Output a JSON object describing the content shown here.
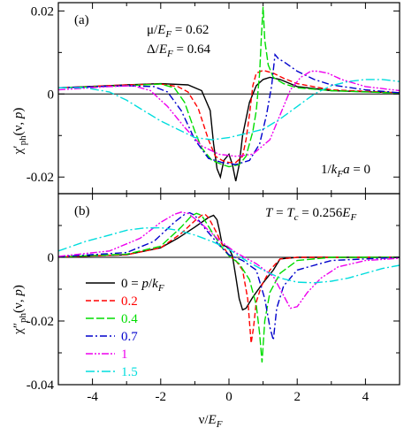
{
  "chart_data": [
    {
      "panel_label": "(a)",
      "type": "line",
      "ylabel": "χ′ph(ν, p)",
      "xlim": [
        -5,
        5
      ],
      "ylim": [
        -0.024,
        0.022
      ],
      "yticks": [
        {
          "value": 0.02,
          "label": "0.02"
        },
        {
          "value": 0,
          "label": "0"
        },
        {
          "value": -0.02,
          "label": "-0.02"
        }
      ],
      "annotations": [
        "μ/EF = 0.62",
        "Δ/EF = 0.64",
        "1/kFa = 0"
      ],
      "series": [
        {
          "name": "0",
          "color": "#000000",
          "dash": "solid",
          "x": [
            -5,
            -3,
            -2,
            -1.2,
            -0.8,
            -0.55,
            -0.45,
            -0.35,
            -0.25,
            -0.15,
            0,
            0.1,
            0.2,
            0.3,
            0.4,
            0.6,
            0.8,
            1.0,
            1.2,
            1.5,
            2,
            3,
            5
          ],
          "y": [
            0.0015,
            0.0022,
            0.0025,
            0.0022,
            0.0008,
            -0.004,
            -0.012,
            -0.018,
            -0.02,
            -0.016,
            -0.0145,
            -0.017,
            -0.021,
            -0.017,
            -0.01,
            -0.002,
            0.002,
            0.0035,
            0.004,
            0.0035,
            0.0018,
            0.0008,
            0.0003
          ]
        },
        {
          "name": "0.2",
          "color": "#ff0000",
          "dash": "6,3",
          "x": [
            -5,
            -3,
            -2,
            -1.5,
            -1.2,
            -0.9,
            -0.6,
            -0.4,
            -0.2,
            0,
            0.2,
            0.4,
            0.5,
            0.6,
            0.7,
            0.8,
            1.0,
            1.3,
            1.6,
            2,
            3,
            5
          ],
          "y": [
            0.0015,
            0.0022,
            0.0024,
            0.0018,
            0.0005,
            -0.0035,
            -0.011,
            -0.015,
            -0.016,
            -0.0165,
            -0.0165,
            -0.015,
            -0.011,
            -0.005,
            0.002,
            0.005,
            0.0057,
            0.005,
            0.0038,
            0.0025,
            0.001,
            0.0003
          ]
        },
        {
          "name": "0.4",
          "color": "#00dd00",
          "dash": "9,3",
          "x": [
            -5,
            -3,
            -2,
            -1.6,
            -1.3,
            -1.0,
            -0.8,
            -0.5,
            -0.2,
            0,
            0.3,
            0.5,
            0.7,
            0.8,
            0.9,
            0.95,
            1.0,
            1.05,
            1.15,
            1.3,
            1.6,
            2,
            3,
            5
          ],
          "y": [
            0.0015,
            0.002,
            0.0024,
            0.0015,
            -0.002,
            -0.009,
            -0.013,
            -0.016,
            -0.017,
            -0.0175,
            -0.017,
            -0.015,
            -0.009,
            -0.004,
            0.005,
            0.014,
            0.021,
            0.013,
            0.007,
            0.004,
            0.0025,
            0.0015,
            0.0008,
            0.0002
          ]
        },
        {
          "name": "0.7",
          "color": "#0000cc",
          "dash": "8,3,2,3",
          "x": [
            -5,
            -3,
            -2.2,
            -1.8,
            -1.4,
            -1.0,
            -0.6,
            -0.2,
            0.2,
            0.6,
            0.9,
            1.1,
            1.25,
            1.35,
            1.45,
            1.6,
            2,
            2.5,
            3,
            4,
            5
          ],
          "y": [
            0.0015,
            0.002,
            0.0018,
            0.0005,
            -0.004,
            -0.011,
            -0.0155,
            -0.0165,
            -0.017,
            -0.016,
            -0.012,
            -0.005,
            0.002,
            0.0095,
            0.0085,
            0.0078,
            0.0055,
            0.0035,
            0.0022,
            0.001,
            0.0003
          ]
        },
        {
          "name": "1",
          "color": "#ee00ee",
          "dash": "8,2,2,2,2,2",
          "x": [
            -5,
            -3.5,
            -2.8,
            -2.3,
            -1.8,
            -1.3,
            -0.8,
            -0.3,
            0.2,
            0.7,
            1.2,
            1.5,
            1.8,
            2.1,
            2.4,
            2.6,
            2.9,
            3.3,
            4,
            5
          ],
          "y": [
            0.001,
            0.0018,
            0.002,
            0.0008,
            -0.003,
            -0.008,
            -0.0125,
            -0.0145,
            -0.015,
            -0.0145,
            -0.011,
            -0.005,
            0.001,
            0.004,
            0.0055,
            0.0055,
            0.005,
            0.0035,
            0.0018,
            0.0008
          ]
        },
        {
          "name": "1.5",
          "color": "#00dddd",
          "dash": "10,3,2,3",
          "x": [
            -5,
            -4.2,
            -3.5,
            -3,
            -2.5,
            -2,
            -1.5,
            -1,
            -0.5,
            0,
            0.5,
            1,
            1.5,
            2,
            2.5,
            3,
            3.5,
            4,
            4.5,
            5
          ],
          "y": [
            0.0015,
            0.0015,
            0.0005,
            -0.0015,
            -0.004,
            -0.0065,
            -0.0085,
            -0.0105,
            -0.011,
            -0.0105,
            -0.0095,
            -0.0085,
            -0.006,
            -0.003,
            0,
            0.002,
            0.003,
            0.0035,
            0.0035,
            0.003
          ]
        }
      ]
    },
    {
      "panel_label": "(b)",
      "type": "line",
      "xlabel": "ν/EF",
      "ylabel": "χ″ph(ν, p)",
      "xlim": [
        -5,
        5
      ],
      "ylim": [
        -0.04,
        0.02
      ],
      "xticks": [
        {
          "value": -4,
          "label": "-4"
        },
        {
          "value": -2,
          "label": "-2"
        },
        {
          "value": 0,
          "label": "0"
        },
        {
          "value": 2,
          "label": "2"
        },
        {
          "value": 4,
          "label": "4"
        }
      ],
      "yticks": [
        {
          "value": 0,
          "label": "0"
        },
        {
          "value": -0.02,
          "label": "-0.02"
        },
        {
          "value": -0.04,
          "label": "-0.04"
        }
      ],
      "annotations": [
        "T = Tc = 0.256EF"
      ],
      "legend_title": "0 = p/kF",
      "legend_placement": "lower-left",
      "series": [
        {
          "name": "0",
          "color": "#000000",
          "dash": "solid",
          "x": [
            -5,
            -3,
            -2,
            -1.5,
            -1,
            -0.6,
            -0.45,
            -0.35,
            -0.28,
            -0.2,
            -0.1,
            0,
            0.1,
            0.2,
            0.3,
            0.4,
            0.5,
            0.7,
            1.0,
            1.3,
            1.5,
            2,
            3,
            5
          ],
          "y": [
            0.0001,
            0.0008,
            0.003,
            0.006,
            0.0095,
            0.0125,
            0.0132,
            0.0118,
            0.0085,
            0.004,
            0.0035,
            0.0028,
            0.0005,
            -0.006,
            -0.013,
            -0.0165,
            -0.016,
            -0.0125,
            -0.008,
            -0.004,
            -0.0005,
            0,
            0,
            0
          ]
        },
        {
          "name": "0.2",
          "color": "#ff0000",
          "dash": "6,3",
          "x": [
            -5,
            -3,
            -2,
            -1.4,
            -1,
            -0.8,
            -0.7,
            -0.6,
            -0.4,
            -0.2,
            0,
            0.2,
            0.4,
            0.55,
            0.65,
            0.72,
            0.8,
            0.95,
            1.2,
            1.5,
            2,
            3,
            5
          ],
          "y": [
            0.0001,
            0.0008,
            0.003,
            0.0075,
            0.0115,
            0.0132,
            0.0135,
            0.0125,
            0.0085,
            0.004,
            0.0005,
            -0.001,
            -0.004,
            -0.013,
            -0.027,
            -0.022,
            -0.014,
            -0.009,
            -0.004,
            -0.0005,
            0,
            0,
            0
          ]
        },
        {
          "name": "0.4",
          "color": "#00dd00",
          "dash": "9,3",
          "x": [
            -5,
            -3,
            -2,
            -1.4,
            -1.1,
            -0.95,
            -0.8,
            -0.5,
            -0.2,
            0,
            0.3,
            0.6,
            0.8,
            0.9,
            0.97,
            1.05,
            1.2,
            1.5,
            2,
            3,
            5
          ],
          "y": [
            0.0001,
            0.001,
            0.0035,
            0.0095,
            0.013,
            0.0138,
            0.0132,
            0.008,
            0.003,
            0.0005,
            -0.002,
            -0.007,
            -0.015,
            -0.024,
            -0.033,
            -0.02,
            -0.011,
            -0.005,
            -0.001,
            0,
            0
          ]
        },
        {
          "name": "0.7",
          "color": "#0000cc",
          "dash": "8,3,2,3",
          "x": [
            -5,
            -3,
            -2.2,
            -1.6,
            -1.3,
            -1.15,
            -1.0,
            -0.7,
            -0.3,
            0,
            0.4,
            0.8,
            1.05,
            1.2,
            1.3,
            1.4,
            1.6,
            2,
            3,
            5
          ],
          "y": [
            0.0002,
            0.0015,
            0.005,
            0.011,
            0.0135,
            0.014,
            0.0132,
            0.009,
            0.004,
            0.0008,
            -0.001,
            -0.004,
            -0.013,
            -0.022,
            -0.026,
            -0.016,
            -0.009,
            -0.004,
            -0.001,
            0
          ]
        },
        {
          "name": "1",
          "color": "#ee00ee",
          "dash": "8,2,2,2,2,2",
          "x": [
            -5,
            -3.5,
            -2.6,
            -2,
            -1.6,
            -1.4,
            -1.2,
            -0.8,
            -0.3,
            0.2,
            0.8,
            1.3,
            1.6,
            1.8,
            2.0,
            2.3,
            2.7,
            3.2,
            4,
            5
          ],
          "y": [
            0.0003,
            0.002,
            0.006,
            0.011,
            0.0135,
            0.0142,
            0.0138,
            0.0105,
            0.0055,
            0.0015,
            -0.002,
            -0.006,
            -0.012,
            -0.016,
            -0.0155,
            -0.011,
            -0.0065,
            -0.003,
            -0.001,
            -0.0003
          ]
        },
        {
          "name": "1.5",
          "color": "#00dddd",
          "dash": "10,3,2,3",
          "x": [
            -5,
            -4.2,
            -3.5,
            -3,
            -2.5,
            -2,
            -1.5,
            -1,
            -0.5,
            0,
            0.5,
            1,
            1.5,
            2,
            2.5,
            3,
            3.5,
            4,
            4.5,
            5
          ],
          "y": [
            0.002,
            0.005,
            0.007,
            0.0085,
            0.0092,
            0.0093,
            0.0085,
            0.007,
            0.005,
            0.0025,
            -0.001,
            -0.004,
            -0.0065,
            -0.0078,
            -0.008,
            -0.0075,
            -0.0065,
            -0.005,
            -0.0035,
            -0.0025
          ]
        }
      ]
    }
  ]
}
